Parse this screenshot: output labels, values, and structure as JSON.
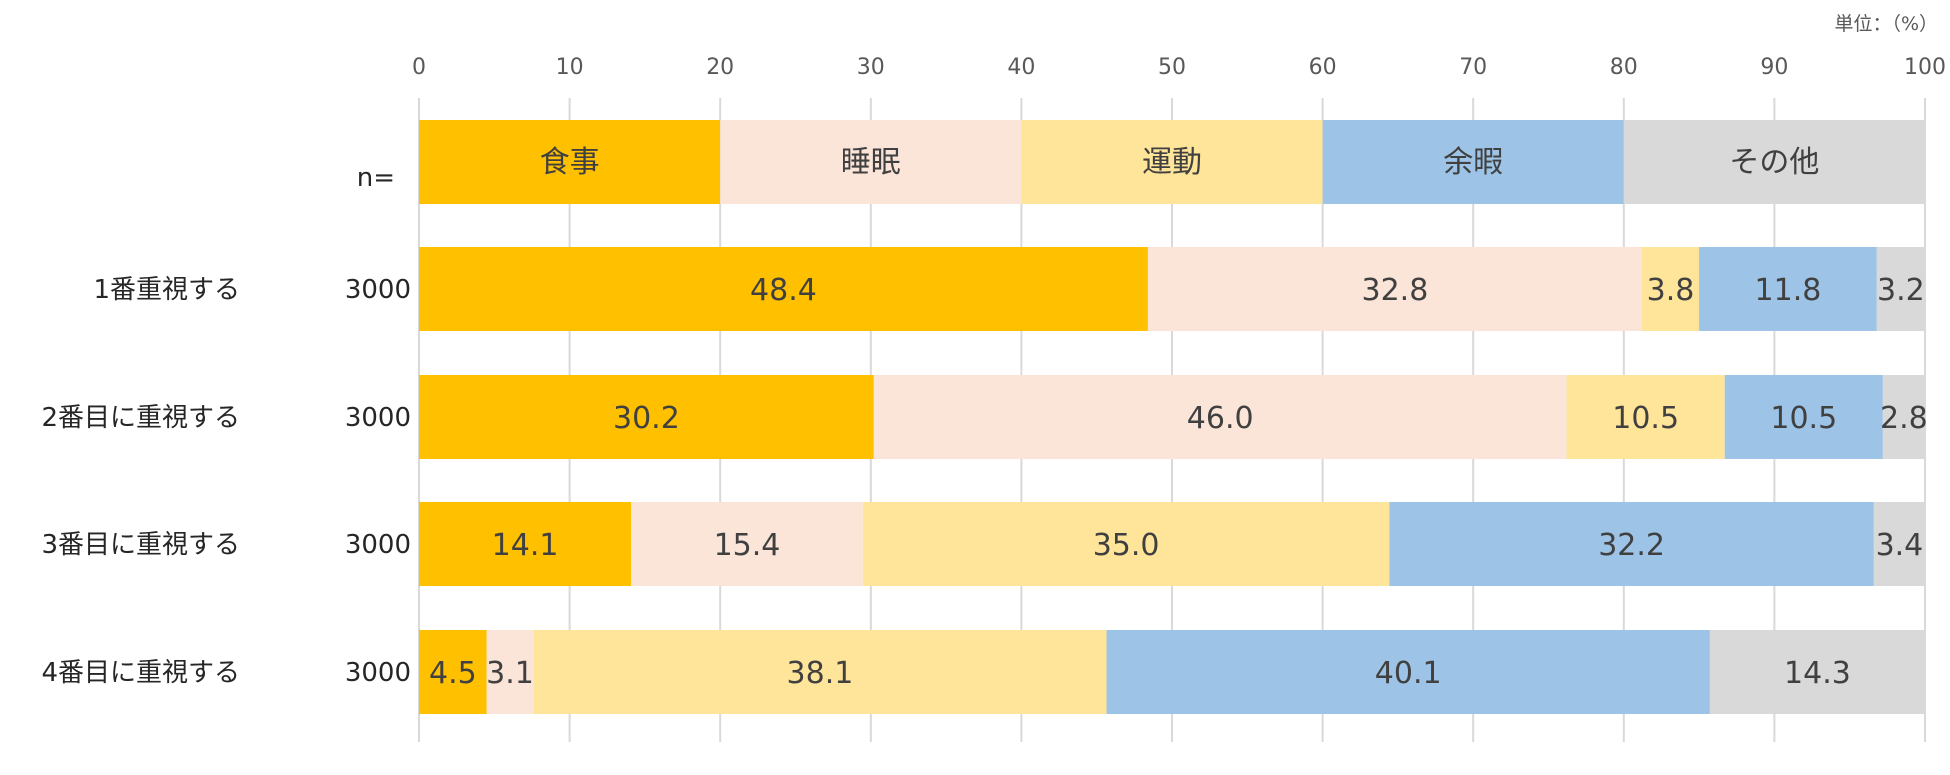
{
  "chart_data": {
    "type": "bar",
    "orientation": "horizontal-stacked-100",
    "unit_label": "単位：（%）",
    "xlim": [
      0,
      100
    ],
    "xticks": [
      "0",
      "10",
      "20",
      "30",
      "40",
      "50",
      "60",
      "70",
      "80",
      "90",
      "100"
    ],
    "n_header": "n=",
    "legend": [
      {
        "name": "食事",
        "color": "#FFC000"
      },
      {
        "name": "睡眠",
        "color": "#FAE5D8"
      },
      {
        "name": "運動",
        "color": "#FFE59A"
      },
      {
        "name": "余暇",
        "color": "#9DC3E6"
      },
      {
        "name": "その他",
        "color": "#D9D9D9"
      }
    ],
    "categories": [
      "1番重視する",
      "2番目に重視する",
      "3番目に重視する",
      "4番目に重視する"
    ],
    "n_values": [
      "3000",
      "3000",
      "3000",
      "3000"
    ],
    "rows": [
      [
        "48.4",
        "32.8",
        "3.8",
        "11.8",
        "3.2"
      ],
      [
        "30.2",
        "46.0",
        "10.5",
        "10.5",
        "2.8"
      ],
      [
        "14.1",
        "15.4",
        "35.0",
        "32.2",
        "3.4"
      ],
      [
        "4.5",
        "3.1",
        "38.1",
        "40.1",
        "14.3"
      ]
    ]
  }
}
